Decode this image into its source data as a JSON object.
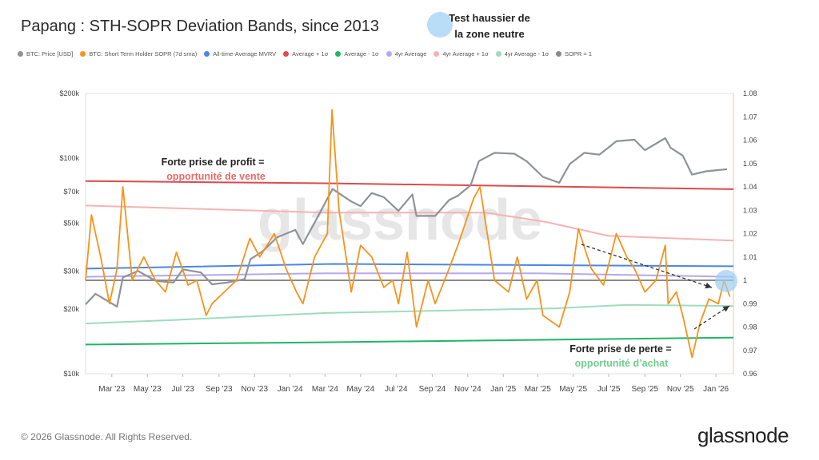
{
  "title": "Papang : STH-SOPR Deviation Bands, since 2013",
  "legend": [
    {
      "label": "BTC: Price [USD]",
      "color": "#8e9398"
    },
    {
      "label": "BTC: Short Term Holder SOPR (7d sma)",
      "color": "#f7931a"
    },
    {
      "label": "All-time-Average MVRV",
      "color": "#4a86e8"
    },
    {
      "label": "Average + 1σ",
      "color": "#e0494b"
    },
    {
      "label": "Average - 1σ",
      "color": "#1fb566"
    },
    {
      "label": "4yr Average",
      "color": "#b5a8f0"
    },
    {
      "label": "4yr Average + 1σ",
      "color": "#f6b3b3"
    },
    {
      "label": "4yr Average - 1σ",
      "color": "#9fdcbe"
    },
    {
      "label": "SOPR = 1",
      "color": "#8a8a8a"
    }
  ],
  "annotations": {
    "top_title": "Test haussier de",
    "top_title2": "la zone neutre",
    "sell_title": "Forte prise de profit =",
    "sell_sub": "opportunité de vente",
    "buy_title": "Forte prise de perte =",
    "buy_sub": "opportunité d’achat"
  },
  "watermark": "glassnode",
  "copyright": "© 2026 Glassnode. All Rights Reserved.",
  "brand": "glassnode",
  "chart_data": {
    "type": "line",
    "x_ticks": [
      "Mar '23",
      "May '23",
      "Jul '23",
      "Sep '23",
      "Nov '23",
      "Jan '24",
      "Mar '24",
      "May '24",
      "Jul '24",
      "Sep '24",
      "Nov '24",
      "Jan '25",
      "Mar '25",
      "May '25",
      "Jul '25",
      "Sep '25",
      "Nov '25",
      "Jan '26"
    ],
    "y_left_ticks": [
      "$10k",
      "$20k",
      "$30k",
      "$50k",
      "$70k",
      "$100k",
      "$200k"
    ],
    "y_left_scale": "log",
    "y_left_range": [
      10000,
      200000
    ],
    "y_right_ticks": [
      "0.96",
      "0.97",
      "0.98",
      "0.99",
      "1",
      "1.01",
      "1.02",
      "1.03",
      "1.04",
      "1.05",
      "1.06",
      "1.07",
      "1.08"
    ],
    "y_right_range": [
      0.96,
      1.08
    ],
    "x_range": [
      "2023-01-15",
      "2026-01-31"
    ],
    "series": [
      {
        "name": "BTC: Price [USD]",
        "color": "#8e9398",
        "axis": "left",
        "x": [
          "2023-01-15",
          "2023-02-01",
          "2023-03-10",
          "2023-03-20",
          "2023-04-15",
          "2023-05-15",
          "2023-06-15",
          "2023-07-01",
          "2023-08-01",
          "2023-08-20",
          "2023-09-15",
          "2023-10-15",
          "2023-10-25",
          "2023-11-15",
          "2023-12-10",
          "2024-01-10",
          "2024-01-23",
          "2024-02-15",
          "2024-03-01",
          "2024-03-14",
          "2024-04-15",
          "2024-05-01",
          "2024-05-20",
          "2024-06-10",
          "2024-07-05",
          "2024-07-29",
          "2024-08-05",
          "2024-09-06",
          "2024-09-30",
          "2024-10-15",
          "2024-11-06",
          "2024-11-20",
          "2024-12-17",
          "2025-01-20",
          "2025-02-10",
          "2025-03-10",
          "2025-04-07",
          "2025-04-25",
          "2025-05-20",
          "2025-06-15",
          "2025-07-14",
          "2025-08-14",
          "2025-09-01",
          "2025-10-06",
          "2025-10-15",
          "2025-11-05",
          "2025-11-21",
          "2025-12-15",
          "2026-01-20"
        ],
        "y": [
          21000,
          23500,
          20500,
          28000,
          30000,
          27000,
          26500,
          30500,
          29500,
          26000,
          26500,
          27500,
          34000,
          37000,
          43000,
          46500,
          40000,
          52000,
          62000,
          72000,
          63000,
          60000,
          69000,
          66000,
          57000,
          68000,
          54000,
          54000,
          64000,
          67000,
          75000,
          97000,
          106000,
          105000,
          97000,
          82000,
          77000,
          94000,
          106000,
          104000,
          120000,
          122000,
          109000,
          124000,
          112000,
          103000,
          84000,
          87000,
          89000
        ]
      },
      {
        "name": "BTC: Short Term Holder SOPR (7d sma)",
        "color": "#f7931a",
        "axis": "right",
        "x": [
          "2023-01-15",
          "2023-01-25",
          "2023-02-10",
          "2023-02-25",
          "2023-03-10",
          "2023-03-20",
          "2023-04-05",
          "2023-04-25",
          "2023-05-15",
          "2023-06-01",
          "2023-06-20",
          "2023-07-10",
          "2023-07-25",
          "2023-08-10",
          "2023-08-20",
          "2023-09-10",
          "2023-10-01",
          "2023-10-24",
          "2023-11-10",
          "2023-12-05",
          "2023-12-25",
          "2024-01-12",
          "2024-01-23",
          "2024-02-12",
          "2024-03-05",
          "2024-03-13",
          "2024-03-25",
          "2024-04-15",
          "2024-05-01",
          "2024-05-20",
          "2024-06-10",
          "2024-06-25",
          "2024-07-05",
          "2024-07-20",
          "2024-08-05",
          "2024-08-25",
          "2024-09-06",
          "2024-09-30",
          "2024-10-15",
          "2024-11-11",
          "2024-11-22",
          "2024-12-17",
          "2025-01-10",
          "2025-01-25",
          "2025-02-10",
          "2025-02-28",
          "2025-03-10",
          "2025-04-07",
          "2025-04-25",
          "2025-05-10",
          "2025-06-01",
          "2025-06-22",
          "2025-07-14",
          "2025-08-01",
          "2025-08-14",
          "2025-09-01",
          "2025-09-20",
          "2025-10-06",
          "2025-10-11",
          "2025-10-25",
          "2025-11-05",
          "2025-11-21",
          "2025-12-05",
          "2025-12-20",
          "2026-01-05",
          "2026-01-15",
          "2026-01-25"
        ],
        "y": [
          1.0,
          1.028,
          1.01,
          0.99,
          1.005,
          1.04,
          1.0,
          1.01,
          1.0,
          0.995,
          1.012,
          0.998,
          1.0,
          0.985,
          0.99,
          0.995,
          1.0,
          1.018,
          1.01,
          1.02,
          1.005,
          0.995,
          0.99,
          1.01,
          1.02,
          1.073,
          1.03,
          0.995,
          1.015,
          1.01,
          0.997,
          1.0,
          0.99,
          1.012,
          0.98,
          1.0,
          0.99,
          1.005,
          1.015,
          1.035,
          1.04,
          1.0,
          0.995,
          1.01,
          0.992,
          1.0,
          0.985,
          0.98,
          0.995,
          1.022,
          1.005,
          0.998,
          1.02,
          1.01,
          1.005,
          0.995,
          1.0,
          1.015,
          0.99,
          0.995,
          0.985,
          0.967,
          0.982,
          0.992,
          0.99,
          1.0,
          0.993
        ]
      },
      {
        "name": "All-time-Average MVRV",
        "color": "#4a86e8",
        "axis": "right",
        "x": [
          "2023-01-15",
          "2024-03-15",
          "2026-01-31"
        ],
        "y": [
          1.005,
          1.007,
          1.006
        ]
      },
      {
        "name": "Average + 1σ",
        "color": "#e0494b",
        "axis": "right",
        "x": [
          "2023-01-15",
          "2024-03-15",
          "2026-01-31"
        ],
        "y": [
          1.0425,
          1.0415,
          1.039
        ]
      },
      {
        "name": "Average - 1σ",
        "color": "#1fb566",
        "axis": "right",
        "x": [
          "2023-01-15",
          "2024-03-15",
          "2026-01-31"
        ],
        "y": [
          0.9725,
          0.9735,
          0.9755
        ]
      },
      {
        "name": "4yr Average",
        "color": "#b5a8f0",
        "axis": "right",
        "x": [
          "2023-01-15",
          "2024-03-01",
          "2025-03-01",
          "2026-01-31"
        ],
        "y": [
          1.0015,
          1.003,
          1.003,
          1.0015
        ]
      },
      {
        "name": "4yr Average + 1σ",
        "color": "#f6b3b3",
        "axis": "right",
        "x": [
          "2023-01-15",
          "2024-03-01",
          "2024-12-01",
          "2025-03-15",
          "2025-07-01",
          "2026-01-31"
        ],
        "y": [
          1.032,
          1.029,
          1.029,
          1.025,
          1.019,
          1.017
        ]
      },
      {
        "name": "4yr Average - 1σ",
        "color": "#9fdcbe",
        "axis": "right",
        "x": [
          "2023-01-15",
          "2023-06-15",
          "2024-03-01",
          "2025-04-01",
          "2025-08-01",
          "2026-01-31"
        ],
        "y": [
          0.9815,
          0.983,
          0.986,
          0.988,
          0.9895,
          0.989
        ]
      },
      {
        "name": "SOPR = 1",
        "color": "#8a8a8a",
        "axis": "right",
        "x": [
          "2023-01-15",
          "2026-01-31"
        ],
        "y": [
          1.0,
          1.0
        ]
      }
    ]
  }
}
